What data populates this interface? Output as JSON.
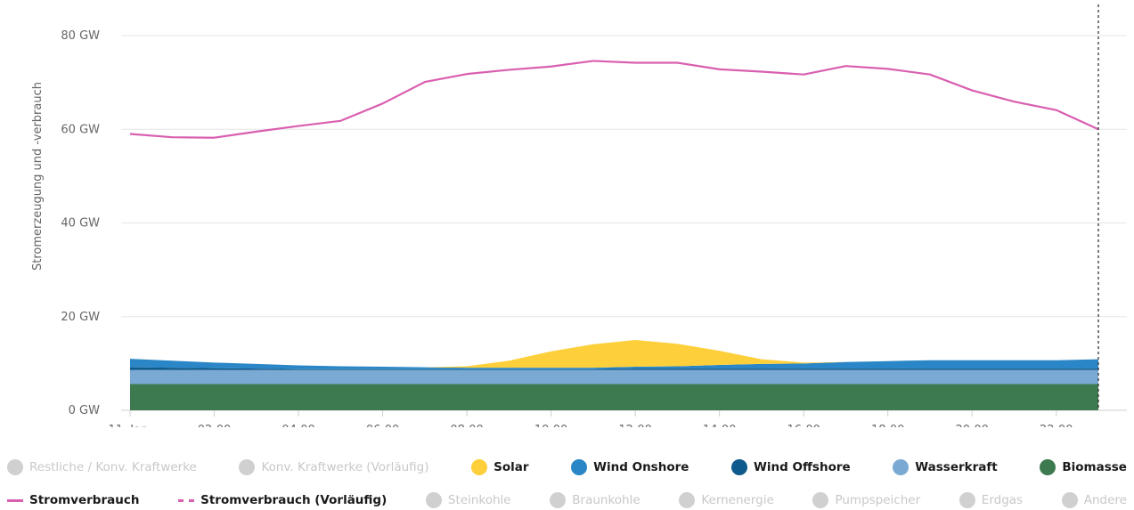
{
  "chart_data": {
    "type": "area",
    "x": [
      "11. Jan.",
      "01:00",
      "02:00",
      "03:00",
      "04:00",
      "05:00",
      "06:00",
      "07:00",
      "08:00",
      "09:00",
      "10:00",
      "11:00",
      "12:00",
      "13:00",
      "14:00",
      "15:00",
      "16:00",
      "17:00",
      "18:00",
      "19:00",
      "20:00",
      "21:00",
      "22:00",
      "23:00"
    ],
    "x_tick_labels": [
      "11. Jan.",
      "02:00",
      "04:00",
      "06:00",
      "08:00",
      "10:00",
      "12:00",
      "14:00",
      "16:00",
      "18:00",
      "20:00",
      "22:00"
    ],
    "x_tick_indices": [
      0,
      2,
      4,
      6,
      8,
      10,
      12,
      14,
      16,
      18,
      20,
      22
    ],
    "ylabel": "Stromerzeugung und -verbrauch",
    "ylim": [
      0,
      80
    ],
    "y_ticks": [
      0,
      20,
      40,
      60,
      80
    ],
    "y_tick_labels": [
      "0 GW",
      "20 GW",
      "40 GW",
      "60 GW",
      "80 GW"
    ],
    "grid": true,
    "cursor_index": 23,
    "stacked_series": [
      {
        "name": "Biomasse",
        "color": "#3d7a4f",
        "values": [
          5.6,
          5.6,
          5.6,
          5.6,
          5.6,
          5.6,
          5.6,
          5.6,
          5.6,
          5.6,
          5.6,
          5.6,
          5.6,
          5.6,
          5.6,
          5.6,
          5.6,
          5.6,
          5.6,
          5.6,
          5.6,
          5.6,
          5.6,
          5.6
        ]
      },
      {
        "name": "Wasserkraft",
        "color": "#7aa9d4",
        "values": [
          3.0,
          3.0,
          3.0,
          3.0,
          3.0,
          3.0,
          3.0,
          3.0,
          3.0,
          3.0,
          3.0,
          3.0,
          3.0,
          3.0,
          3.0,
          3.0,
          3.0,
          3.0,
          3.0,
          3.0,
          3.0,
          3.0,
          3.0,
          3.0
        ]
      },
      {
        "name": "Wind Offshore",
        "color": "#0f5a8c",
        "values": [
          0.6,
          0.5,
          0.4,
          0.3,
          0.2,
          0.2,
          0.2,
          0.2,
          0.2,
          0.2,
          0.2,
          0.2,
          0.3,
          0.3,
          0.3,
          0.3,
          0.3,
          0.3,
          0.3,
          0.3,
          0.3,
          0.3,
          0.3,
          0.3
        ]
      },
      {
        "name": "Wind Onshore",
        "color": "#2a86c6",
        "values": [
          1.8,
          1.5,
          1.2,
          1.0,
          0.8,
          0.6,
          0.5,
          0.4,
          0.3,
          0.3,
          0.3,
          0.3,
          0.4,
          0.5,
          0.8,
          1.0,
          1.1,
          1.4,
          1.6,
          1.8,
          1.8,
          1.8,
          1.8,
          2.0
        ]
      },
      {
        "name": "Solar",
        "color": "#fdd03b",
        "values": [
          0,
          0,
          0,
          0,
          0,
          0,
          0,
          0,
          0.3,
          1.5,
          3.5,
          5.0,
          5.7,
          4.8,
          3.0,
          1.0,
          0.2,
          0,
          0,
          0,
          0,
          0,
          0,
          0
        ]
      }
    ],
    "line_series": [
      {
        "name": "Stromverbrauch",
        "color": "#d95fb0",
        "values": [
          59.0,
          58.3,
          58.2,
          59.5,
          60.7,
          61.8,
          65.5,
          70.1,
          71.8,
          72.7,
          73.4,
          74.6,
          74.2,
          74.2,
          72.8,
          72.3,
          71.7,
          73.5,
          72.9,
          71.7,
          68.3,
          65.9,
          64.1,
          60.0
        ]
      }
    ]
  },
  "legend": {
    "row1": [
      {
        "label": "Restliche / Konv. Kraftwerke",
        "kind": "dot",
        "active": false
      },
      {
        "label": "Konv. Kraftwerke (Vorläufig)",
        "kind": "dot",
        "active": false
      },
      {
        "label": "Solar",
        "kind": "dot",
        "active": true,
        "color": "#fdd03b"
      },
      {
        "label": "Wind Onshore",
        "kind": "dot",
        "active": true,
        "color": "#2a86c6"
      },
      {
        "label": "Wind Offshore",
        "kind": "dot",
        "active": true,
        "color": "#0f5a8c"
      },
      {
        "label": "Wasserkraft",
        "kind": "dot",
        "active": true,
        "color": "#7aa9d4"
      },
      {
        "label": "Biomasse",
        "kind": "dot",
        "active": true,
        "color": "#3d7a4f"
      }
    ],
    "row2": [
      {
        "label": "Stromverbrauch",
        "kind": "line",
        "active": true,
        "color": "#d95fb0"
      },
      {
        "label": "Stromverbrauch (Vorläufig)",
        "kind": "dashed",
        "active": true,
        "color": "#d95fb0"
      },
      {
        "label": "Steinkohle",
        "kind": "dot",
        "active": false
      },
      {
        "label": "Braunkohle",
        "kind": "dot",
        "active": false
      },
      {
        "label": "Kernenergie",
        "kind": "dot",
        "active": false
      },
      {
        "label": "Pumpspeicher",
        "kind": "dot",
        "active": false
      },
      {
        "label": "Erdgas",
        "kind": "dot",
        "active": false
      },
      {
        "label": "Andere",
        "kind": "dot",
        "active": false
      }
    ]
  }
}
